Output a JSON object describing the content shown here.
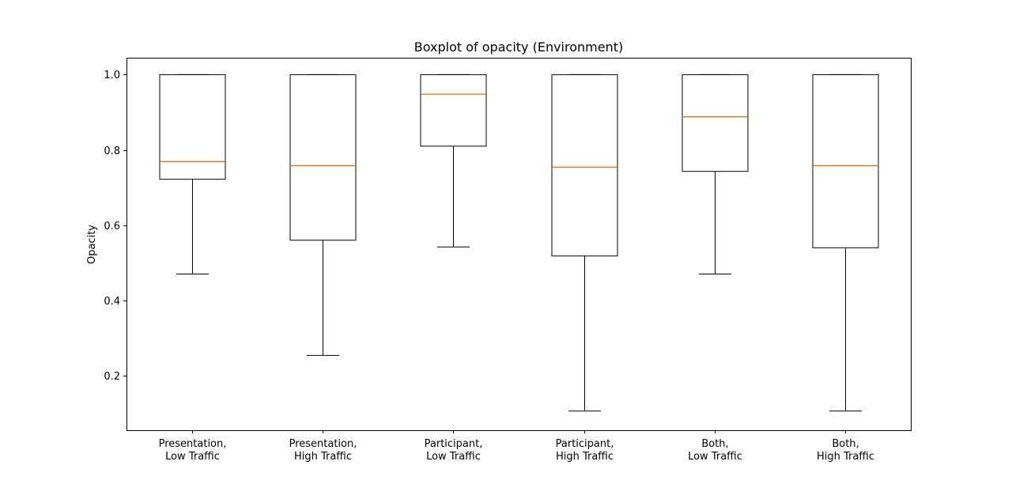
{
  "chart_data": {
    "type": "boxplot",
    "title": "Boxplot of opacity (Environment)",
    "xlabel": "",
    "ylabel": "Opacity",
    "ylim": [
      0.055,
      1.045
    ],
    "yticks": [
      0.2,
      0.4,
      0.6,
      0.8,
      1.0
    ],
    "ytick_labels": [
      "0.2",
      "0.4",
      "0.6",
      "0.8",
      "1.0"
    ],
    "grid": false,
    "median_color": "#ff6600",
    "box_color": "#000000",
    "categories": [
      [
        "Presentation,",
        "Low Traffic"
      ],
      [
        "Presentation,",
        "High Traffic"
      ],
      [
        "Participant,",
        "Low Traffic"
      ],
      [
        "Participant,",
        "High Traffic"
      ],
      [
        "Both,",
        "Low Traffic"
      ],
      [
        "Both,",
        "High Traffic"
      ]
    ],
    "boxes": [
      {
        "whisker_low": 0.47,
        "q1": 0.722,
        "median": 0.769,
        "q3": 1.0,
        "whisker_high": 1.0
      },
      {
        "whisker_low": 0.254,
        "q1": 0.56,
        "median": 0.758,
        "q3": 1.0,
        "whisker_high": 1.0
      },
      {
        "whisker_low": 0.542,
        "q1": 0.81,
        "median": 0.948,
        "q3": 1.0,
        "whisker_high": 1.0
      },
      {
        "whisker_low": 0.106,
        "q1": 0.518,
        "median": 0.754,
        "q3": 1.0,
        "whisker_high": 1.0
      },
      {
        "whisker_low": 0.47,
        "q1": 0.743,
        "median": 0.888,
        "q3": 1.0,
        "whisker_high": 1.0
      },
      {
        "whisker_low": 0.106,
        "q1": 0.54,
        "median": 0.758,
        "q3": 1.0,
        "whisker_high": 1.0
      }
    ]
  }
}
